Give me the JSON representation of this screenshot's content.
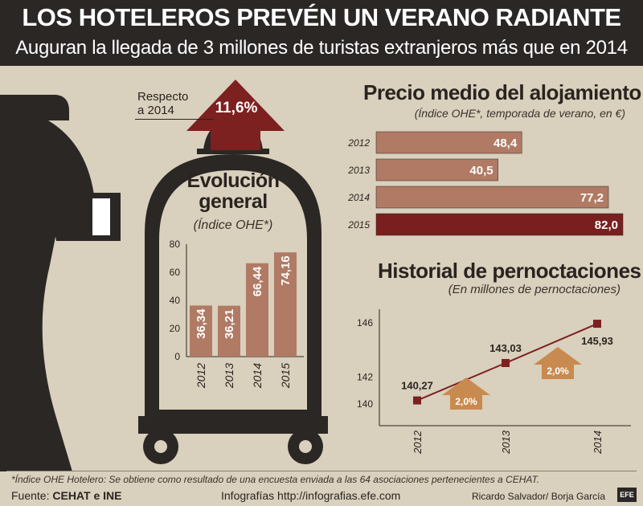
{
  "header": {
    "title": "LOS HOTELEROS PREVÉN UN VERANO RADIANTE",
    "subtitle": "Auguran la llegada de 3 millones de turistas extranjeros más que en 2014"
  },
  "colors": {
    "dark": "#2b2725",
    "bar_light": "#b07a64",
    "bar_dark": "#7a1f1f",
    "arrow_red": "#7c2020",
    "arrow_orange": "#c98a4f",
    "background": "#d9d0bd"
  },
  "icons": [
    "bellhop-silhouette-icon",
    "hotel-bell-icon",
    "up-arrow-icon"
  ],
  "growth_arrow": {
    "label_line1": "Respecto",
    "label_line2": "a 2014",
    "value": "11,6%"
  },
  "chart_data": [
    {
      "type": "bar",
      "title": "Evolución general",
      "title_line1": "Evolución",
      "title_line2": "general",
      "subtitle": "(Índice OHE*)",
      "categories": [
        "2012",
        "2013",
        "2014",
        "2015"
      ],
      "values": [
        36.34,
        36.21,
        66.44,
        74.16
      ],
      "value_labels": [
        "36,34",
        "36,21",
        "66,44",
        "74,16"
      ],
      "yticks": [
        "0",
        "20",
        "40",
        "60",
        "80"
      ],
      "ylim": [
        0,
        80
      ],
      "orientation": "vertical"
    },
    {
      "type": "bar",
      "title": "Precio medio del alojamiento",
      "subtitle": "(Índice OHE*, temporada de verano, en €)",
      "categories": [
        "2012",
        "2013",
        "2014",
        "2015"
      ],
      "values": [
        48.4,
        40.5,
        77.2,
        82.0
      ],
      "value_labels": [
        "48,4",
        "40,5",
        "77,2",
        "82,0"
      ],
      "orientation": "horizontal",
      "highlight": "2015"
    },
    {
      "type": "line",
      "title": "Historial de pernoctaciones",
      "subtitle": "(En millones de pernoctaciones)",
      "x": [
        "2012",
        "2013",
        "2014"
      ],
      "values": [
        140.27,
        143.03,
        145.93
      ],
      "value_labels": [
        "140,27",
        "143,03",
        "145,93"
      ],
      "yticks": [
        "140",
        "142",
        "146"
      ],
      "ylim": [
        139,
        147
      ],
      "growth_markers": [
        "2,0%",
        "2,0%"
      ]
    }
  ],
  "footer": {
    "note": "*Índice OHE Hotelero: Se obtiene como resultado de una encuesta enviada a las 64 asociaciones pertenecientes a CEHAT.",
    "source_prefix": "Fuente: ",
    "source": "CEHAT e INE",
    "web": "Infografías http://infografias.efe.com",
    "authors": "Ricardo Salvador/ Borja García",
    "agency": "EFE"
  }
}
